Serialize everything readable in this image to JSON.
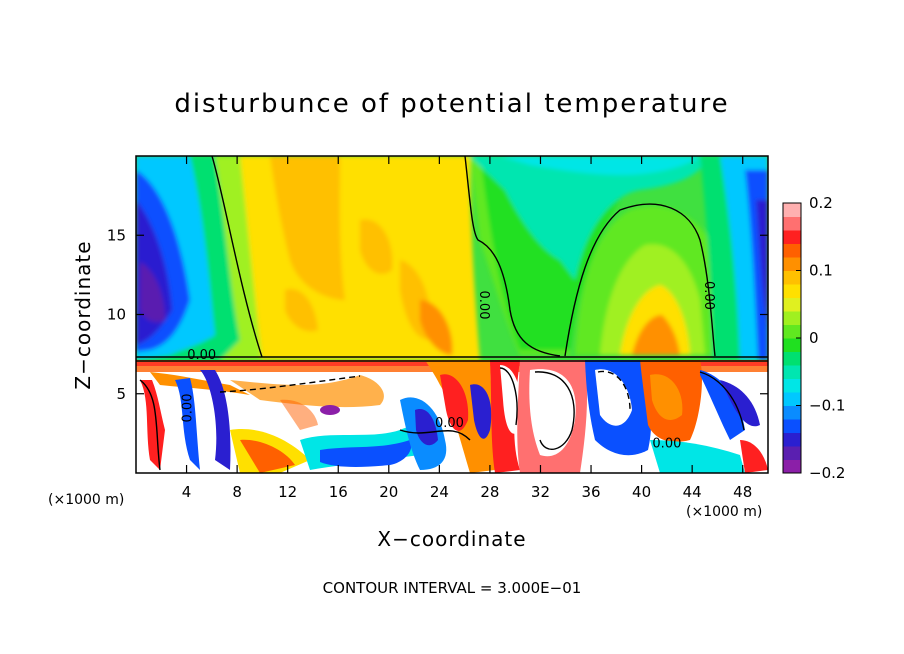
{
  "chart_data": {
    "type": "heatmap",
    "title": "disturbunce of potential temperature",
    "xlabel": "X−coordinate",
    "ylabel": "Z−coordinate",
    "x_unit_left": "(×1000 m)",
    "x_unit_right": "(×1000 m)",
    "xlim": [
      0,
      50
    ],
    "ylim": [
      0,
      20
    ],
    "xticks": [
      4,
      8,
      12,
      16,
      20,
      24,
      28,
      32,
      36,
      40,
      44,
      48
    ],
    "xtick_labels": [
      "4",
      "8",
      "12",
      "16",
      "20",
      "24",
      "28",
      "32",
      "36",
      "40",
      "44",
      "48"
    ],
    "yticks": [
      5,
      10,
      15
    ],
    "ytick_labels": [
      "5",
      "10",
      "15"
    ],
    "colorbar": {
      "min": -0.2,
      "max": 0.2,
      "ticks": [
        0.2,
        0.1,
        0,
        -0.1,
        -0.2
      ],
      "tick_labels": [
        "0.2",
        "0.1",
        "0",
        "−0.1",
        "−0.2"
      ],
      "colors": [
        "#8b1fa8",
        "#5a1fb0",
        "#2a1fd0",
        "#0a50ff",
        "#0a8cff",
        "#00c8ff",
        "#00e6e6",
        "#00e6b0",
        "#00e070",
        "#20e020",
        "#60e820",
        "#a0f020",
        "#e0f020",
        "#ffe000",
        "#ffc000",
        "#ff9000",
        "#ff6000",
        "#ff2020",
        "#ff7070",
        "#ffb0b0"
      ]
    },
    "contour_interval_text": "CONTOUR INTERVAL = 3.000E−01",
    "contour_labels": [
      "0.00",
      "0.00",
      "0.00",
      "0.00",
      "0.00",
      "0.00"
    ]
  }
}
